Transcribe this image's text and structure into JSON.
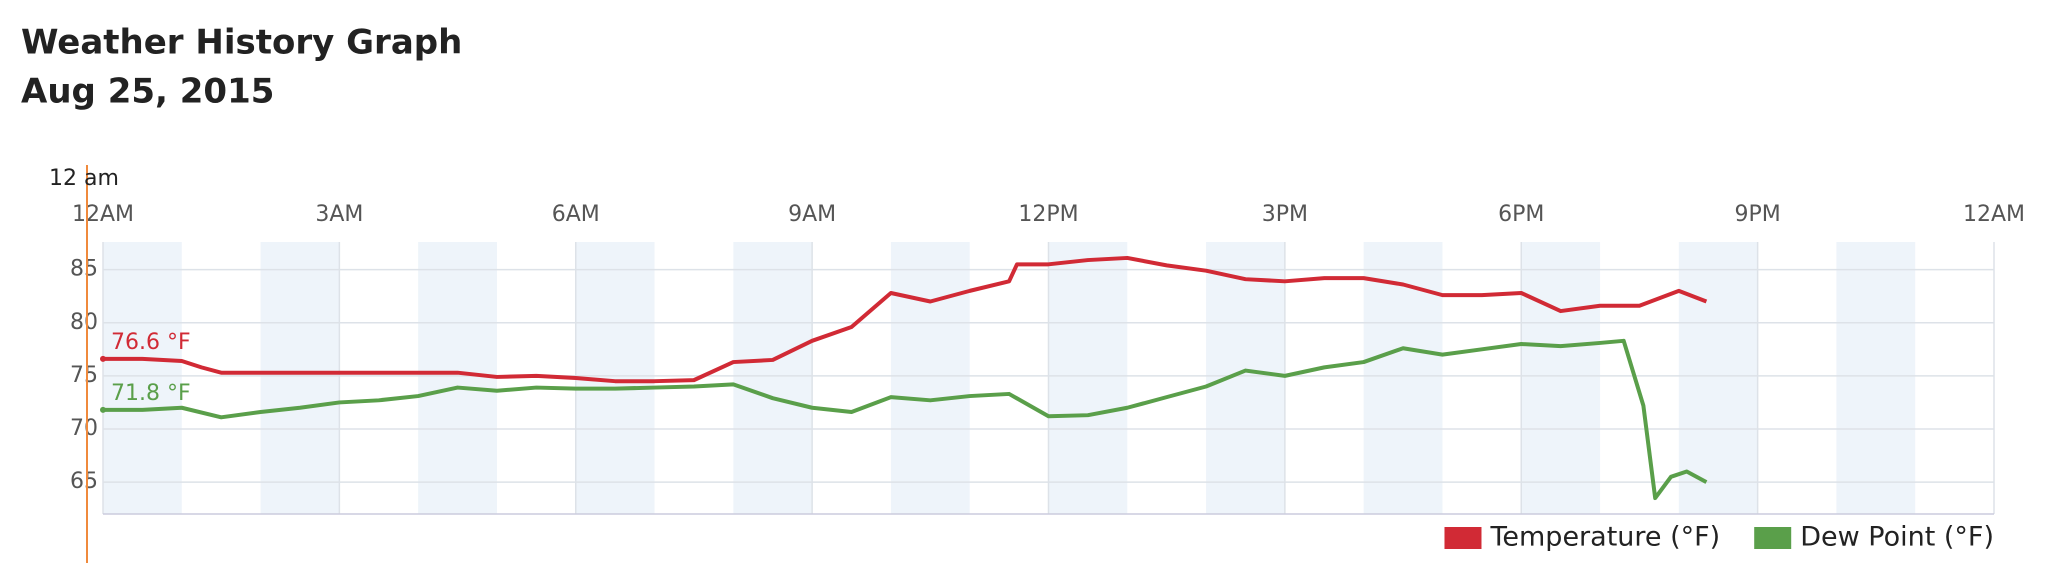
{
  "header": {
    "title": "Weather History Graph",
    "date": "Aug 25, 2015"
  },
  "chart_data": {
    "type": "line",
    "xlim": [
      0,
      24
    ],
    "xticks": [
      {
        "value": 0,
        "label": "12AM"
      },
      {
        "value": 3,
        "label": "3AM"
      },
      {
        "value": 6,
        "label": "6AM"
      },
      {
        "value": 9,
        "label": "9AM"
      },
      {
        "value": 12,
        "label": "12PM"
      },
      {
        "value": 15,
        "label": "3PM"
      },
      {
        "value": 18,
        "label": "6PM"
      },
      {
        "value": 21,
        "label": "9PM"
      },
      {
        "value": 24,
        "label": "12AM"
      }
    ],
    "ylim": [
      62,
      87.6
    ],
    "yticks": [
      65,
      70,
      75,
      80,
      85
    ],
    "grid": true,
    "legend": "bottom-right",
    "cursor": {
      "x": 0,
      "label": "12 am",
      "values": [
        76.6,
        71.8
      ],
      "value_labels": [
        "76.6 °F",
        "71.8 °F"
      ]
    },
    "series": [
      {
        "name": "Temperature (°F)",
        "color": "#d12a35",
        "x": [
          0,
          0.5,
          1,
          1.25,
          1.5,
          2,
          2.5,
          3,
          3.5,
          4,
          4.5,
          5,
          5.5,
          6,
          6.5,
          7,
          7.5,
          8,
          8.5,
          9,
          9.5,
          10,
          10.5,
          11,
          11.5,
          11.6,
          12,
          12.5,
          13,
          13.5,
          14,
          14.5,
          15,
          15.5,
          16,
          16.5,
          17,
          17.5,
          18,
          18.5,
          19,
          19.5,
          20,
          20.35
        ],
        "values": [
          76.6,
          76.6,
          76.4,
          75.8,
          75.3,
          75.3,
          75.3,
          75.3,
          75.3,
          75.3,
          75.3,
          74.9,
          75.0,
          74.8,
          74.5,
          74.5,
          74.6,
          76.3,
          76.5,
          78.3,
          79.6,
          82.8,
          82.0,
          83.0,
          83.9,
          85.5,
          85.5,
          85.9,
          86.1,
          85.4,
          84.9,
          84.1,
          83.9,
          84.2,
          84.2,
          83.6,
          82.6,
          82.6,
          82.8,
          81.1,
          81.6,
          81.6,
          83.0,
          82.0
        ]
      },
      {
        "name": "Dew Point (°F)",
        "color": "#5a9f4a",
        "x": [
          0,
          0.5,
          1,
          1.5,
          2,
          2.5,
          3,
          3.5,
          4,
          4.5,
          5,
          5.5,
          6,
          6.5,
          7,
          7.5,
          8,
          8.5,
          9,
          9.5,
          10,
          10.5,
          11,
          11.5,
          12,
          12.5,
          13,
          13.5,
          14,
          14.5,
          15,
          15.5,
          16,
          16.5,
          17,
          17.5,
          18,
          18.5,
          19,
          19.3,
          19.55,
          19.7,
          19.9,
          20.1,
          20.35
        ],
        "values": [
          71.8,
          71.8,
          72.0,
          71.1,
          71.6,
          72.0,
          72.5,
          72.7,
          73.1,
          73.9,
          73.6,
          73.9,
          73.8,
          73.8,
          73.9,
          74.0,
          74.2,
          72.9,
          72.0,
          71.6,
          73.0,
          72.7,
          73.1,
          73.3,
          71.2,
          71.3,
          72.0,
          73.0,
          74.0,
          75.5,
          75.0,
          75.8,
          76.3,
          77.6,
          77.0,
          77.5,
          78.0,
          77.8,
          78.1,
          78.3,
          72.2,
          63.5,
          65.5,
          66.0,
          65.0
        ]
      }
    ]
  }
}
